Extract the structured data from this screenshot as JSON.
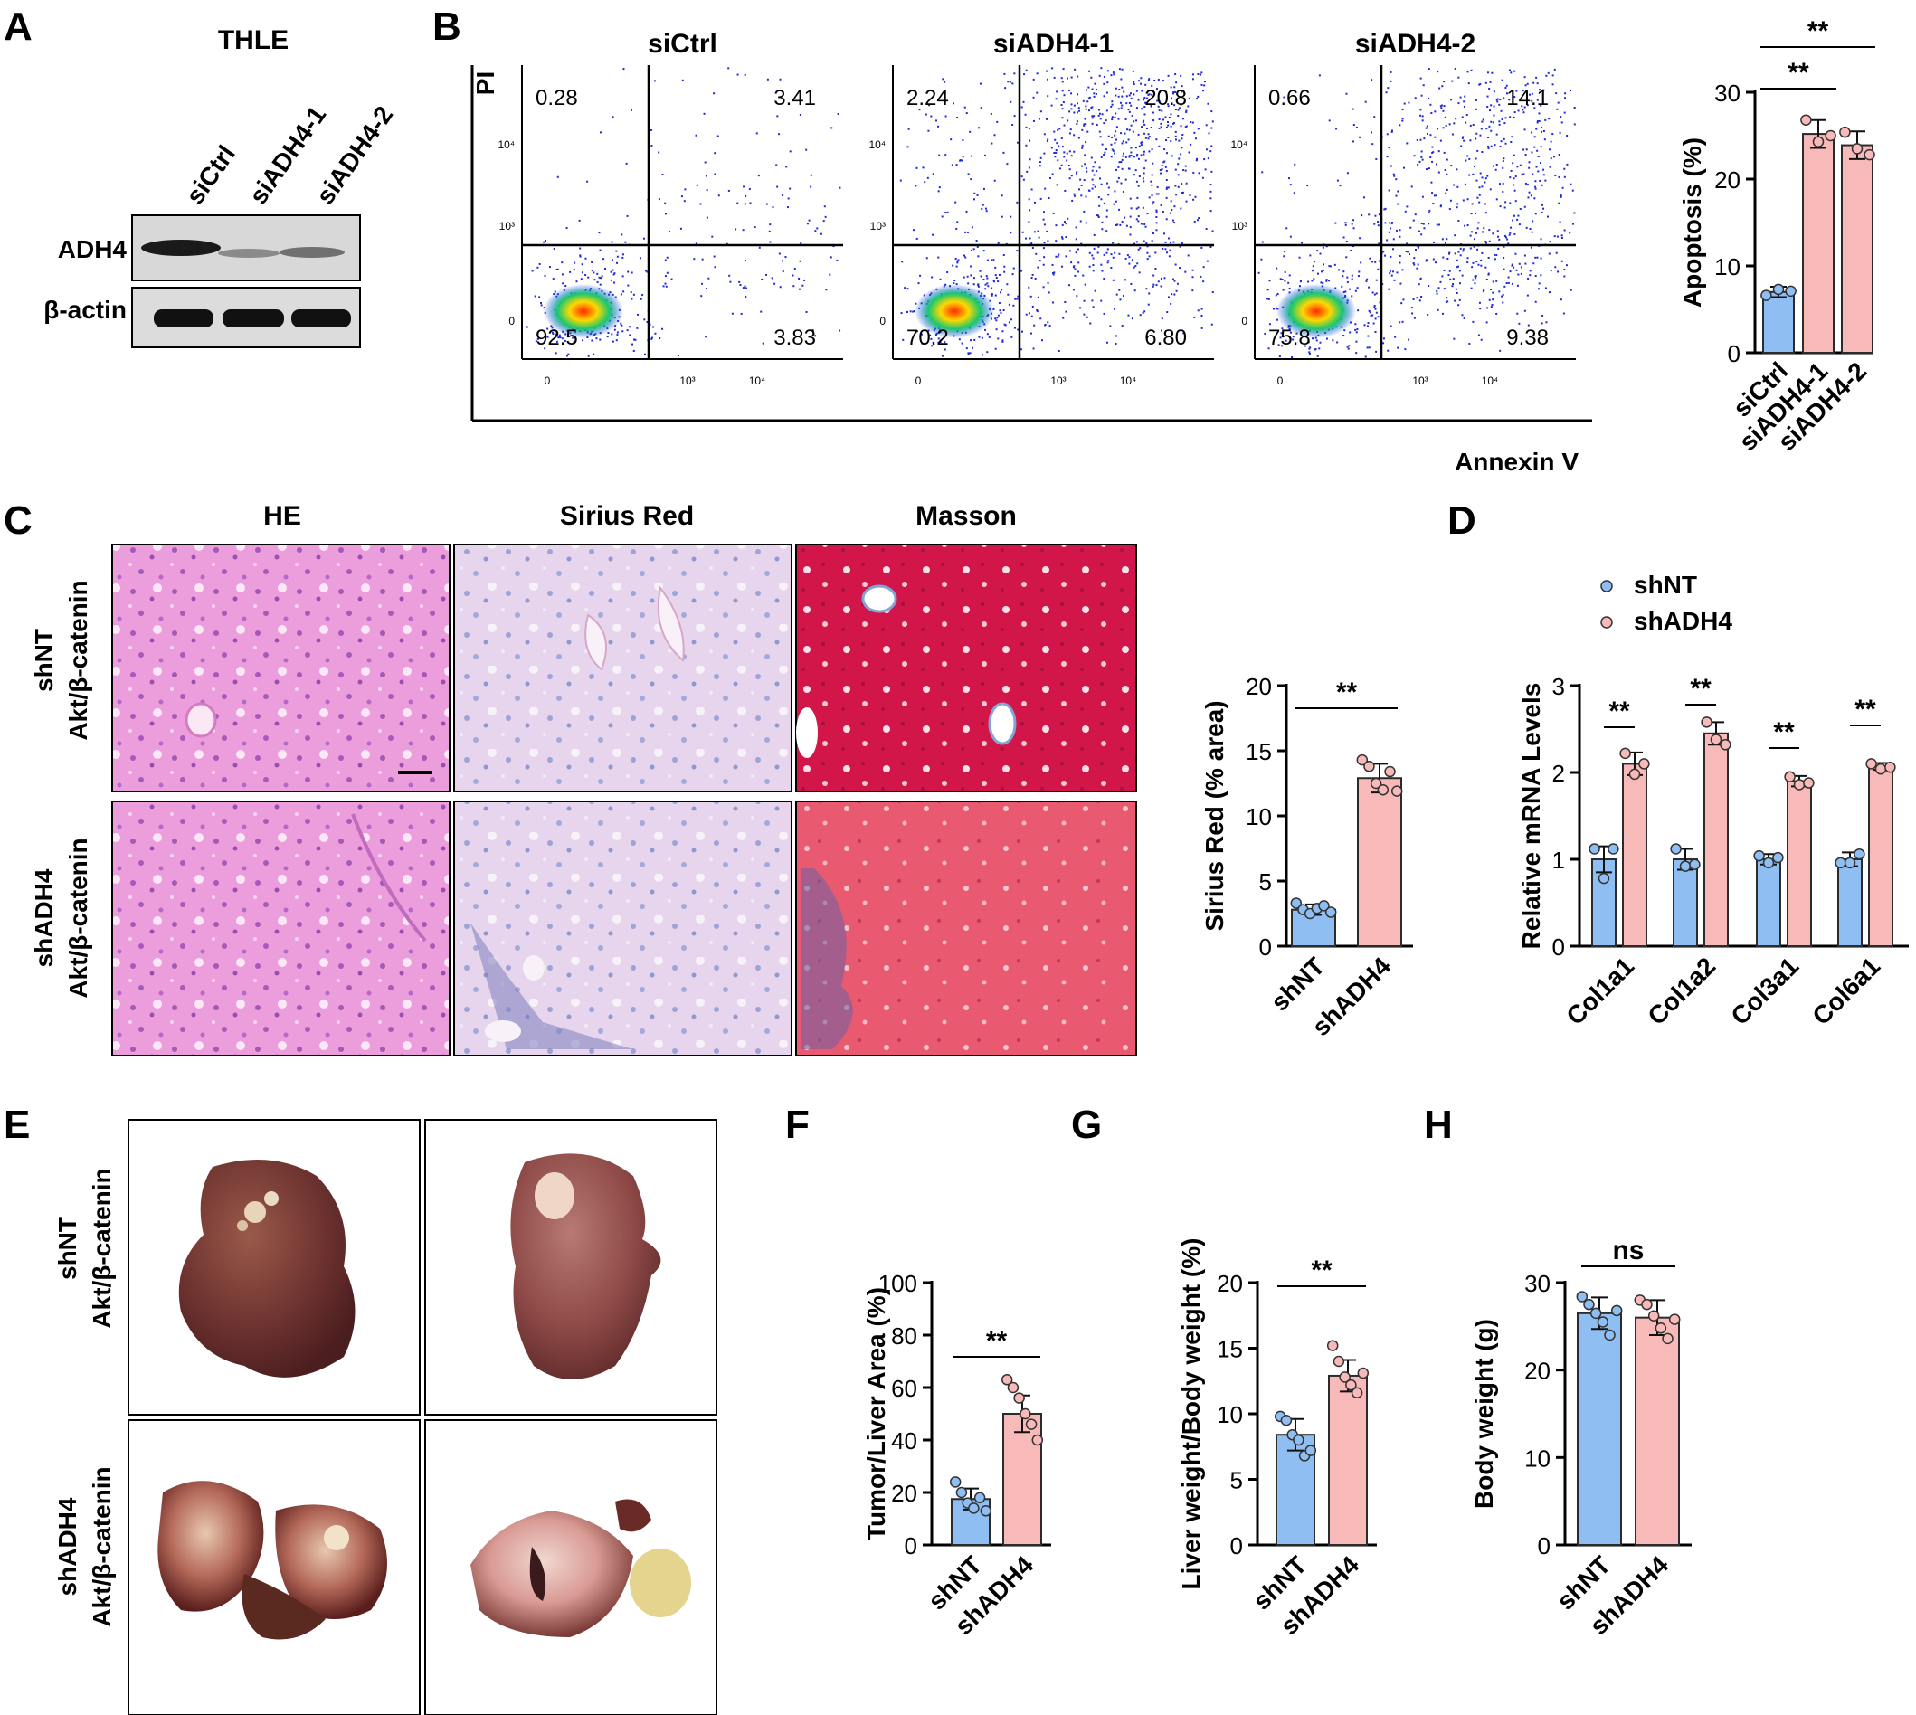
{
  "panels": {
    "A": {
      "letter": "A",
      "title": "THLE",
      "lanes": [
        "siCtrl",
        "siADH4-1",
        "siADH4-2"
      ],
      "rows": [
        "ADH4",
        "β-actin"
      ]
    },
    "B": {
      "letter": "B",
      "yaxis": "PI",
      "xaxis": "Annexin V",
      "plots": [
        {
          "title": "siCtrl",
          "ul": "0.28",
          "ur": "3.41",
          "ll": "92.5",
          "lr": "3.83"
        },
        {
          "title": "siADH4-1",
          "ul": "2.24",
          "ur": "20.8",
          "ll": "70.2",
          "lr": "6.80"
        },
        {
          "title": "siADH4-2",
          "ul": "0.66",
          "ur": "14.1",
          "ll": "75.8",
          "lr": "9.38"
        }
      ],
      "ytick_labels": [
        "0",
        "10³",
        "10⁴"
      ],
      "xtick_labels": [
        "0",
        "10³",
        "10⁴"
      ]
    },
    "C": {
      "letter": "C",
      "columns": [
        "HE",
        "Sirius Red",
        "Masson"
      ],
      "rows": [
        {
          "line1": "shNT",
          "line2": "Akt/β-catenin"
        },
        {
          "line1": "shADH4",
          "line2": "Akt/β-catenin"
        }
      ]
    },
    "D": {
      "letter": "D"
    },
    "E": {
      "letter": "E",
      "rows": [
        {
          "line1": "shNT",
          "line2": "Akt/β-catenin"
        },
        {
          "line1": "shADH4",
          "line2": "Akt/β-catenin"
        }
      ]
    },
    "F": {
      "letter": "F"
    },
    "G": {
      "letter": "G"
    },
    "H": {
      "letter": "H"
    }
  },
  "colors": {
    "blue": "#8fbef2",
    "pink": "#f8b9b9",
    "edge": "#2b2b2b"
  },
  "chart_data": [
    {
      "id": "apoptosis",
      "type": "bar",
      "categories": [
        "siCtrl",
        "siADH4-1",
        "siADH4-2"
      ],
      "values": [
        7.0,
        25.2,
        23.9
      ],
      "errors": [
        0.6,
        1.6,
        1.6
      ],
      "points": [
        [
          6.6,
          7.3,
          7.1
        ],
        [
          26.8,
          24.3,
          25.0
        ],
        [
          25.4,
          23.5,
          22.8
        ]
      ],
      "ylabel": "Apoptosis (%)",
      "ylim": [
        0,
        30
      ],
      "yticks": [
        0,
        10,
        20,
        30
      ],
      "significance": [
        {
          "from": 0,
          "to": 1,
          "label": "**"
        },
        {
          "from": 0,
          "to": 2,
          "label": "**"
        }
      ]
    },
    {
      "id": "sirius",
      "type": "bar",
      "categories": [
        "shNT",
        "shADH4"
      ],
      "values": [
        2.8,
        12.9
      ],
      "errors": [
        0.4,
        1.1
      ],
      "points": [
        [
          3.3,
          2.8,
          2.5,
          2.9,
          3.1,
          2.6
        ],
        [
          14.3,
          13.8,
          12.5,
          12.0,
          13.4,
          11.9
        ]
      ],
      "ylabel": "Sirius Red (% area)",
      "ylim": [
        0,
        20
      ],
      "yticks": [
        0,
        5,
        10,
        15,
        20
      ],
      "significance": [
        {
          "from": 0,
          "to": 1,
          "label": "**"
        }
      ]
    },
    {
      "id": "mrna",
      "type": "bar",
      "categories": [
        "Col1a1",
        "Col1a2",
        "Col3a1",
        "Col6a1"
      ],
      "series": [
        {
          "name": "shNT",
          "values": [
            1.0,
            1.0,
            1.0,
            1.0
          ],
          "errors": [
            0.15,
            0.12,
            0.06,
            0.08
          ],
          "points": [
            [
              1.12,
              0.78,
              1.12
            ],
            [
              1.12,
              0.92,
              0.94
            ],
            [
              1.04,
              0.96,
              1.02
            ],
            [
              0.96,
              0.96,
              1.06
            ]
          ]
        },
        {
          "name": "shADH4",
          "values": [
            2.1,
            2.45,
            1.9,
            2.07
          ],
          "errors": [
            0.13,
            0.13,
            0.06,
            0.04
          ],
          "points": [
            [
              2.22,
              1.98,
              2.1
            ],
            [
              2.58,
              2.38,
              2.32
            ],
            [
              1.95,
              1.86,
              1.88
            ],
            [
              2.1,
              2.04,
              2.06
            ]
          ]
        }
      ],
      "ylabel": "Relative mRNA Levels",
      "ylim": [
        0,
        3
      ],
      "yticks": [
        0,
        1,
        2,
        3
      ],
      "legend": "top-left",
      "significance": [
        {
          "group": 0,
          "label": "**"
        },
        {
          "group": 1,
          "label": "**"
        },
        {
          "group": 2,
          "label": "**"
        },
        {
          "group": 3,
          "label": "**"
        }
      ]
    },
    {
      "id": "tumor",
      "type": "bar",
      "categories": [
        "shNT",
        "shADH4"
      ],
      "values": [
        17.5,
        50.0
      ],
      "errors": [
        4.0,
        7.0
      ],
      "points": [
        [
          24,
          20,
          16,
          14,
          18,
          13
        ],
        [
          63,
          60,
          56,
          50,
          46,
          40
        ]
      ],
      "ylabel": "Tumor/Liver Area (%)",
      "ylim": [
        0,
        100
      ],
      "yticks": [
        0,
        20,
        40,
        60,
        80,
        100
      ],
      "significance": [
        {
          "from": 0,
          "to": 1,
          "label": "**"
        }
      ]
    },
    {
      "id": "liverweight",
      "type": "bar",
      "categories": [
        "shNT",
        "shADH4"
      ],
      "values": [
        8.4,
        12.9
      ],
      "errors": [
        1.2,
        1.2
      ],
      "points": [
        [
          9.8,
          9.5,
          8.4,
          8.0,
          6.8,
          7.2
        ],
        [
          15.2,
          14.0,
          12.8,
          12.2,
          11.6,
          13.1
        ]
      ],
      "ylabel": "Liver weight/Body weight (%)",
      "ylim": [
        0,
        20
      ],
      "yticks": [
        0,
        5,
        10,
        15,
        20
      ],
      "significance": [
        {
          "from": 0,
          "to": 1,
          "label": "**"
        }
      ]
    },
    {
      "id": "bodyweight",
      "type": "bar",
      "categories": [
        "shNT",
        "shADH4"
      ],
      "values": [
        26.5,
        26.0
      ],
      "errors": [
        1.8,
        2.0
      ],
      "points": [
        [
          28.4,
          27.5,
          26.5,
          25.5,
          24.0,
          26.8
        ],
        [
          28.0,
          27.5,
          26.2,
          24.8,
          23.6,
          25.8
        ]
      ],
      "ylabel": "Body weight (g)",
      "ylim": [
        0,
        30
      ],
      "yticks": [
        0,
        10,
        20,
        30
      ],
      "significance": [
        {
          "from": 0,
          "to": 1,
          "label": "ns"
        }
      ]
    }
  ]
}
